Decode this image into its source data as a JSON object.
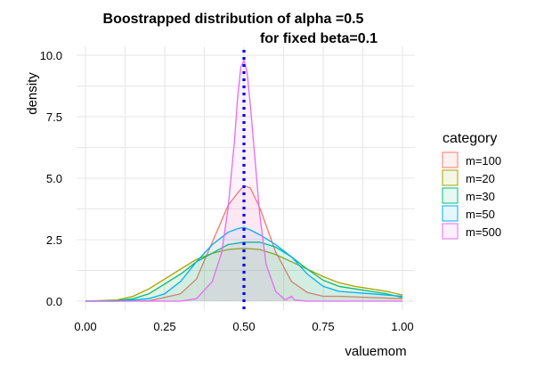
{
  "chart_data": {
    "type": "area",
    "title_line1": "Boostrapped distribution of alpha =0.5",
    "title_line2": "for fixed beta=0.1",
    "xlabel": "valuemom",
    "ylabel": "density",
    "xlim": [
      0,
      1
    ],
    "ylim": [
      0,
      10
    ],
    "xticks": [
      "0.00",
      "0.25",
      "0.50",
      "0.75",
      "1.00"
    ],
    "yticks": [
      "0.0",
      "2.5",
      "5.0",
      "7.5",
      "10.0"
    ],
    "reference_line": {
      "x": 0.5,
      "color": "#0000ff",
      "style": "dotted"
    },
    "legend_title": "category",
    "series": [
      {
        "name": "m=100",
        "color": "#f8766d",
        "x": [
          0.0,
          0.1,
          0.2,
          0.3,
          0.35,
          0.4,
          0.45,
          0.48,
          0.5,
          0.52,
          0.55,
          0.6,
          0.65,
          0.7,
          0.75,
          0.8,
          0.9,
          1.0
        ],
        "y": [
          0.0,
          0.0,
          0.01,
          0.3,
          0.9,
          2.4,
          3.9,
          4.4,
          4.7,
          4.6,
          3.8,
          2.0,
          0.8,
          0.35,
          0.2,
          0.2,
          0.15,
          0.1
        ]
      },
      {
        "name": "m=20",
        "color": "#a3a500",
        "x": [
          0.0,
          0.1,
          0.15,
          0.2,
          0.25,
          0.3,
          0.35,
          0.4,
          0.45,
          0.5,
          0.55,
          0.6,
          0.65,
          0.7,
          0.75,
          0.8,
          0.85,
          0.9,
          0.95,
          1.0
        ],
        "y": [
          0.0,
          0.05,
          0.2,
          0.5,
          0.9,
          1.3,
          1.7,
          1.95,
          2.1,
          2.15,
          2.1,
          1.9,
          1.6,
          1.3,
          1.0,
          0.75,
          0.6,
          0.5,
          0.4,
          0.25
        ]
      },
      {
        "name": "m=30",
        "color": "#00bf7d",
        "x": [
          0.0,
          0.1,
          0.15,
          0.2,
          0.25,
          0.3,
          0.35,
          0.4,
          0.45,
          0.5,
          0.55,
          0.6,
          0.65,
          0.7,
          0.75,
          0.8,
          0.85,
          0.9,
          0.95,
          1.0
        ],
        "y": [
          0.0,
          0.02,
          0.1,
          0.3,
          0.7,
          1.1,
          1.6,
          1.95,
          2.3,
          2.4,
          2.4,
          2.2,
          1.8,
          1.3,
          0.85,
          0.6,
          0.5,
          0.4,
          0.3,
          0.15
        ]
      },
      {
        "name": "m=50",
        "color": "#00b0f6",
        "x": [
          0.0,
          0.1,
          0.2,
          0.25,
          0.3,
          0.35,
          0.4,
          0.45,
          0.48,
          0.5,
          0.52,
          0.55,
          0.6,
          0.65,
          0.7,
          0.75,
          0.8,
          0.9,
          1.0
        ],
        "y": [
          0.0,
          0.0,
          0.1,
          0.3,
          0.8,
          1.6,
          2.3,
          2.8,
          2.95,
          3.0,
          2.9,
          2.7,
          2.3,
          1.8,
          1.1,
          0.6,
          0.4,
          0.3,
          0.2
        ]
      },
      {
        "name": "m=500",
        "color": "#e76bf3",
        "x": [
          0.0,
          0.3,
          0.35,
          0.4,
          0.43,
          0.45,
          0.47,
          0.48,
          0.49,
          0.5,
          0.51,
          0.52,
          0.53,
          0.55,
          0.57,
          0.6,
          0.63,
          0.65,
          0.66,
          0.7,
          1.0
        ],
        "y": [
          0.0,
          0.0,
          0.1,
          0.8,
          2.0,
          3.8,
          6.5,
          8.3,
          9.5,
          9.8,
          9.3,
          8.0,
          6.5,
          3.5,
          1.5,
          0.4,
          0.05,
          0.2,
          0.05,
          0.0,
          0.0
        ]
      }
    ]
  }
}
